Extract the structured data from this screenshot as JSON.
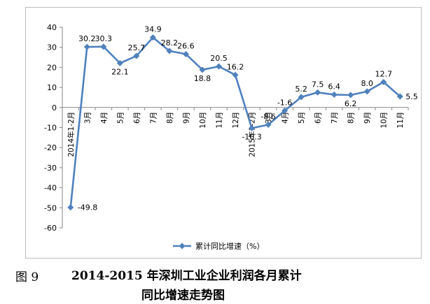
{
  "chart_data": {
    "type": "line",
    "series": [
      {
        "name": "累计同比增速（%）",
        "color": "#4f81bd",
        "values": [
          -49.8,
          30.2,
          30.3,
          22.1,
          25.7,
          34.9,
          28.2,
          26.6,
          18.8,
          20.5,
          16.2,
          -10.3,
          -8.6,
          -1.6,
          5.2,
          7.5,
          6.4,
          6.2,
          8.0,
          12.7,
          5.5
        ]
      }
    ],
    "categories": [
      "2014年1-2月",
      "3月",
      "4月",
      "5月",
      "6月",
      "7月",
      "8月",
      "9月",
      "10月",
      "11月",
      "12月",
      "2015年1-2月",
      "3月",
      "4月",
      "5月",
      "6月",
      "7月",
      "8月",
      "9月",
      "10月",
      "11月"
    ],
    "data_labels": [
      "-49.8",
      "30.2",
      "30.3",
      "22.1",
      "25.7",
      "34.9",
      "28.2",
      "26.6",
      "18.8",
      "20.5",
      "16.2",
      "-10.3",
      "-8.6",
      "-1.6",
      "5.2",
      "7.5",
      "6.4",
      "6.2",
      "8.0",
      "12.7",
      "5.5"
    ],
    "yticks": [
      "40",
      "30",
      "20",
      "10",
      "0",
      "-10",
      "-20",
      "-30",
      "-40",
      "-50",
      "-60"
    ],
    "ylim": [
      -60,
      40
    ],
    "legend_position": "bottom",
    "grid": false,
    "marker": "diamond"
  },
  "caption": {
    "figure_number": "图 9",
    "title_line1": "2014-2015 年深圳工业企业利润各月累计",
    "title_line2": "同比增速走势图"
  }
}
